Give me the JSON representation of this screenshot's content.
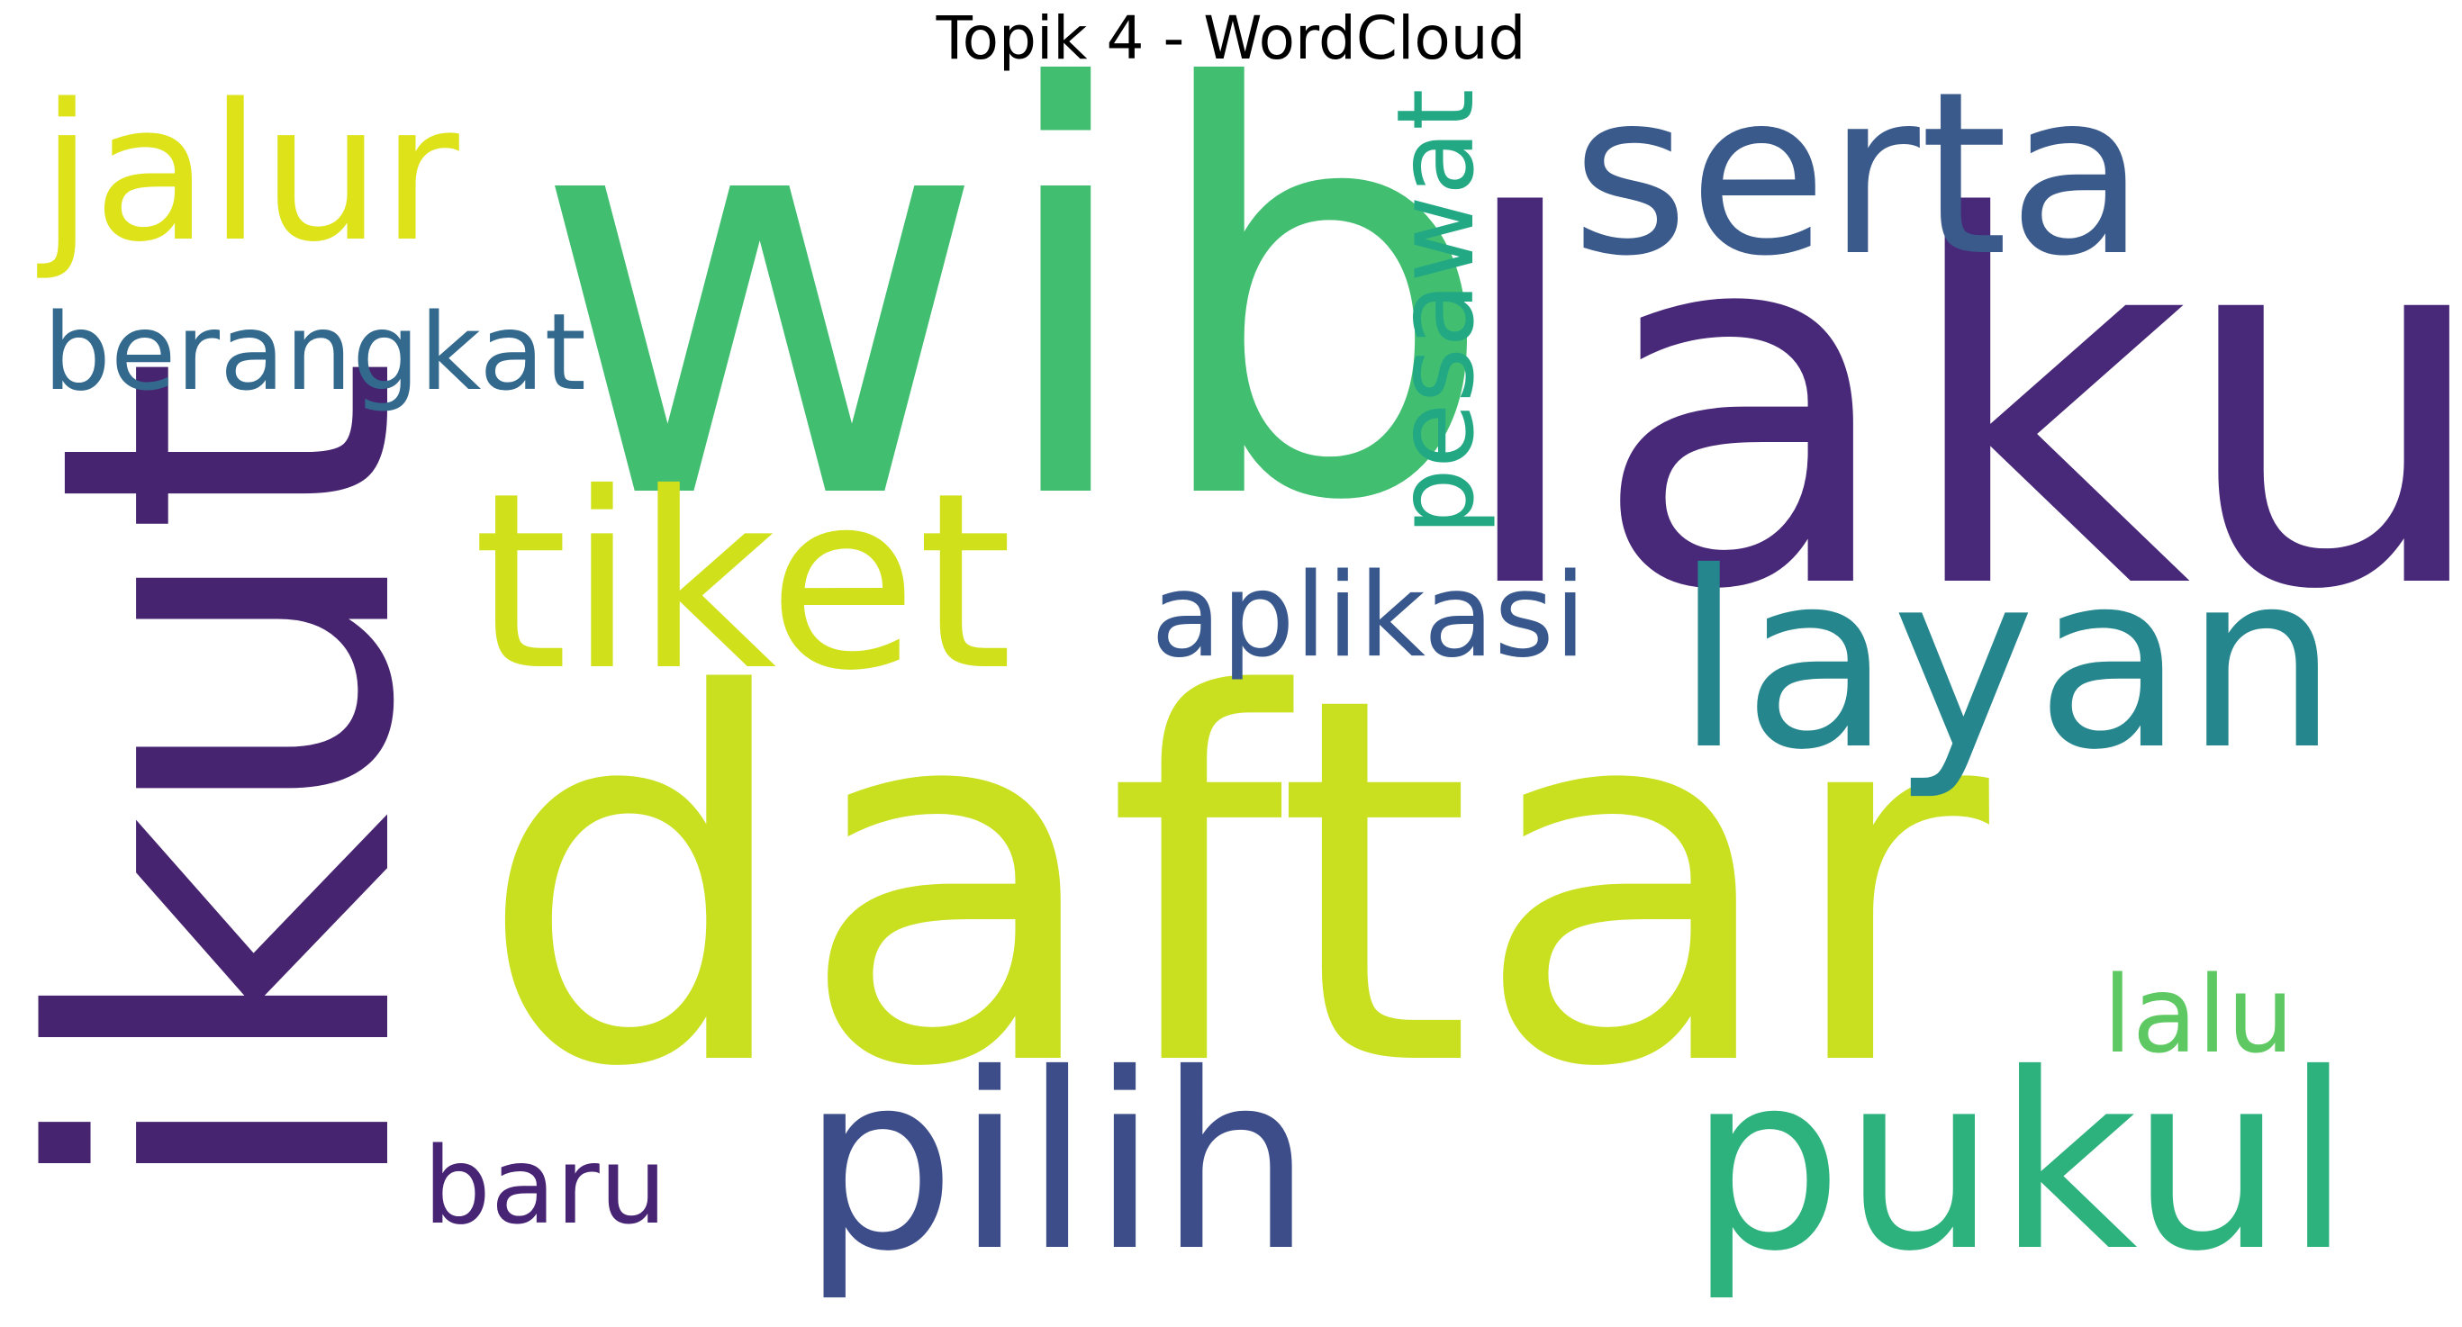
{
  "title": "Topik 4 - WordCloud",
  "words": [
    {
      "text": "wib",
      "color": "#42be71"
    },
    {
      "text": "laku",
      "color": "#482878"
    },
    {
      "text": "daftar",
      "color": "#c8e020"
    },
    {
      "text": "ikut",
      "color": "#472470"
    },
    {
      "text": "serta",
      "color": "#3b5a8c"
    },
    {
      "text": "jalur",
      "color": "#dde318"
    },
    {
      "text": "berangkat",
      "color": "#33698d"
    },
    {
      "text": "tiket",
      "color": "#d0e11c"
    },
    {
      "text": "pesawat",
      "color": "#23a884"
    },
    {
      "text": "aplikasi",
      "color": "#38578c"
    },
    {
      "text": "layan",
      "color": "#26868e"
    },
    {
      "text": "pilih",
      "color": "#3d4d8a"
    },
    {
      "text": "pukul",
      "color": "#2db27d"
    },
    {
      "text": "lalu",
      "color": "#5ec962"
    },
    {
      "text": "baru",
      "color": "#482475"
    }
  ]
}
